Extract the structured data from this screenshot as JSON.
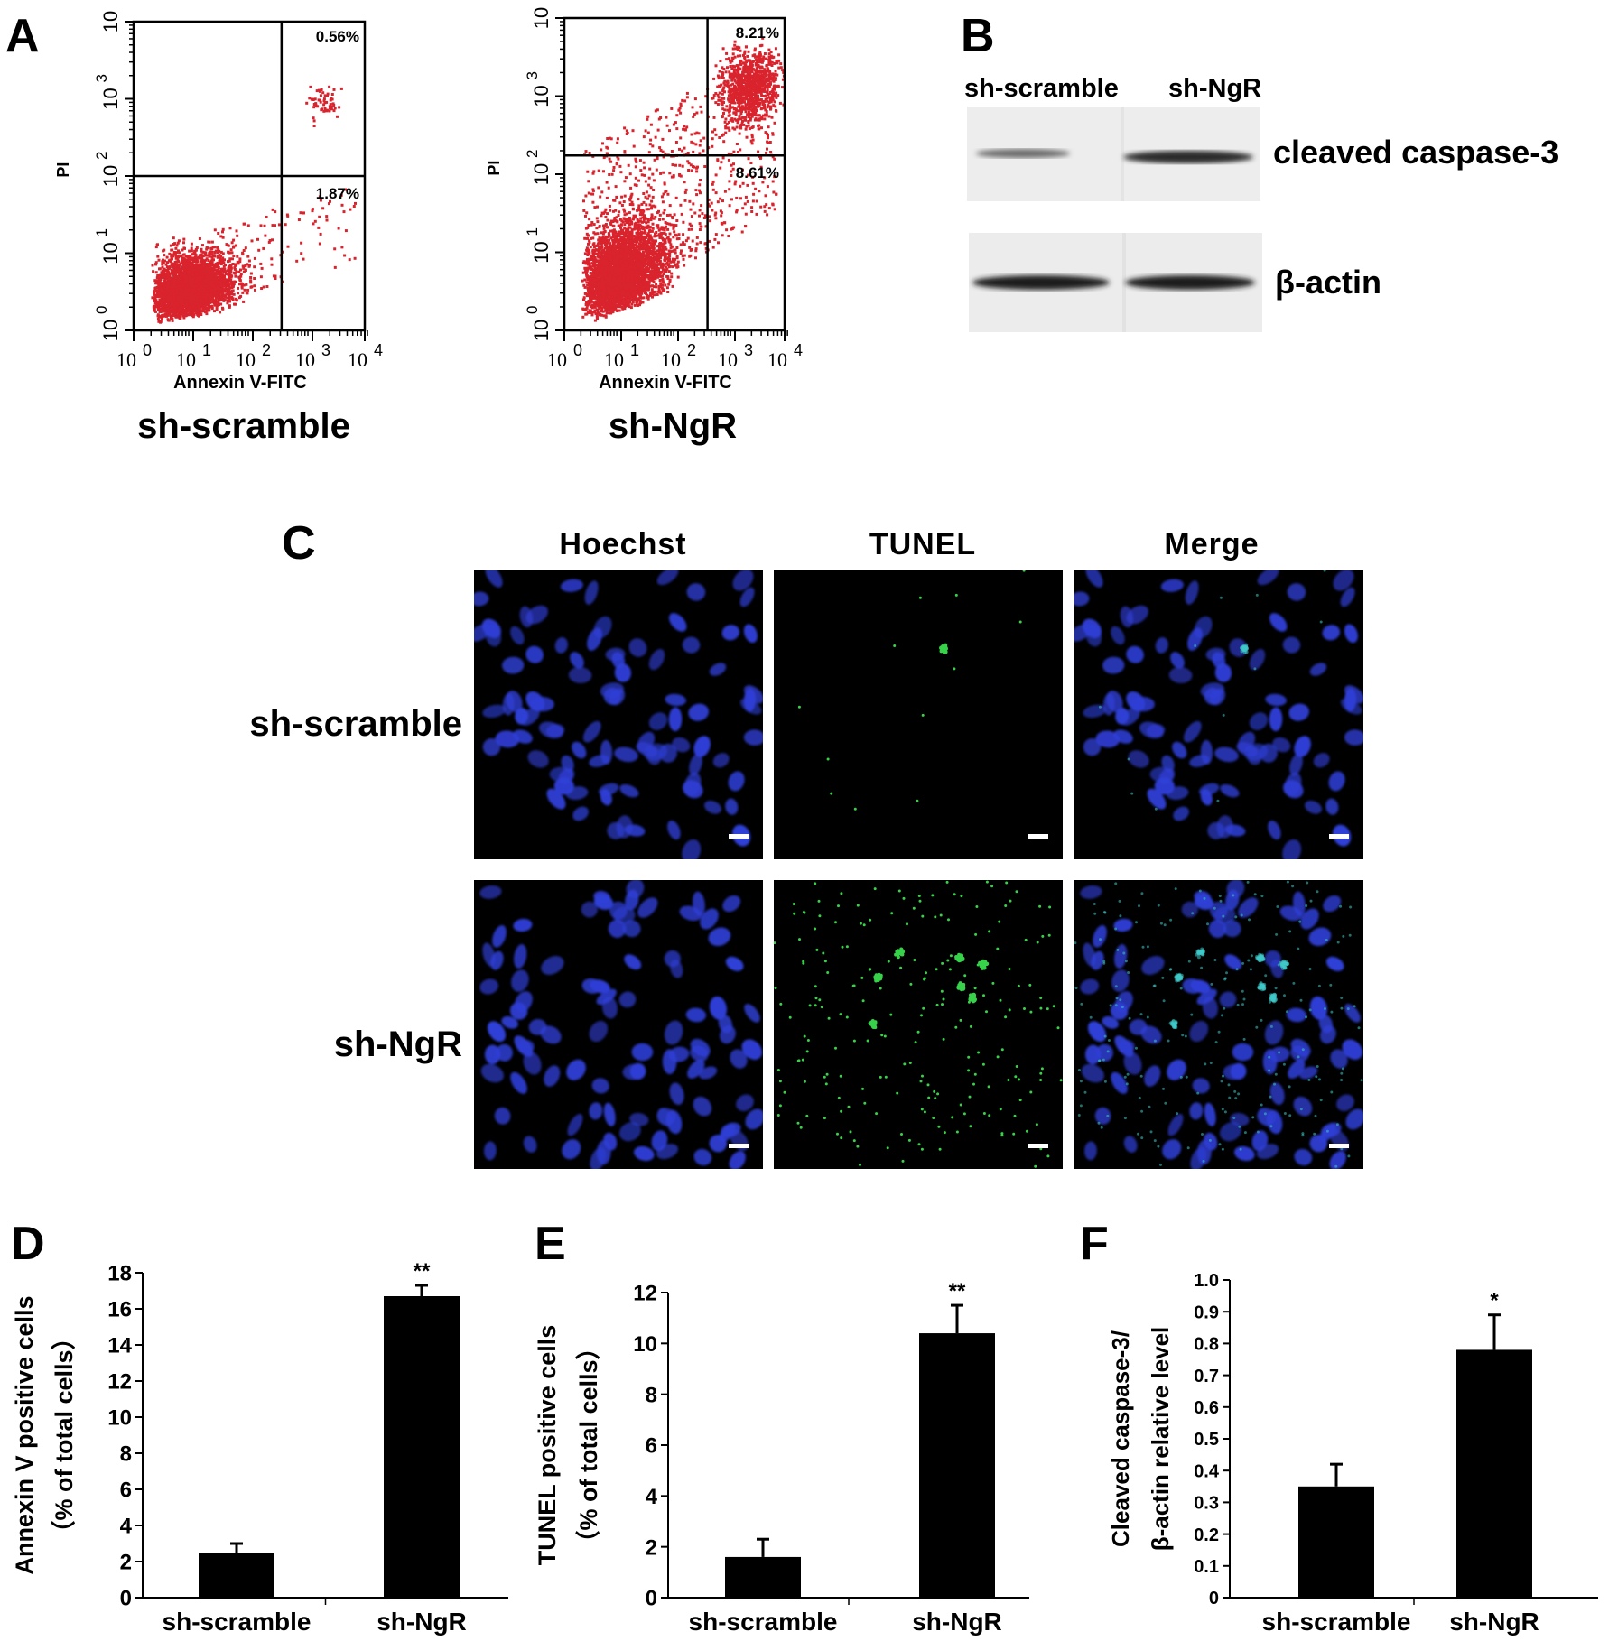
{
  "panels": {
    "A": {
      "letter": "A",
      "flow": [
        {
          "condition": "sh-scramble",
          "xlabel": "Annexin V-FITC",
          "ylabel": "PI",
          "q_upper_right": "0.56%",
          "q_lower_right": "1.87%",
          "ticks_x": [
            "10",
            "10",
            "10",
            "10",
            "10"
          ],
          "ticks_x_exp": [
            "0",
            "1",
            "2",
            "3",
            "4"
          ],
          "ticks_y": [
            "10",
            "10",
            "10",
            "10",
            "10"
          ],
          "ticks_y_exp": [
            "0",
            "1",
            "2",
            "3",
            ""
          ]
        },
        {
          "condition": "sh-NgR",
          "xlabel": "Annexin V-FITC",
          "ylabel": "PI",
          "q_upper_right": "8.21%",
          "q_lower_right": "8.61%",
          "ticks_x": [
            "10",
            "10",
            "10",
            "10",
            "10"
          ],
          "ticks_x_exp": [
            "0",
            "1",
            "2",
            "3",
            "4"
          ],
          "ticks_y": [
            "10",
            "10",
            "10",
            "10",
            "10"
          ],
          "ticks_y_exp": [
            "0",
            "1",
            "2",
            "3",
            ""
          ]
        }
      ],
      "dot_color": "#d9232d"
    },
    "B": {
      "letter": "B",
      "lanes": [
        "sh-scramble",
        "sh-NgR"
      ],
      "bands": [
        "cleaved caspase-3",
        "β-actin"
      ]
    },
    "C": {
      "letter": "C",
      "columns": [
        "Hoechst",
        "TUNEL",
        "Merge"
      ],
      "rows": [
        "sh-scramble",
        "sh-NgR"
      ],
      "nuclei_color": "#2f3fd6",
      "tunel_color": "#37d24a"
    },
    "D": {
      "letter": "D"
    },
    "E": {
      "letter": "E"
    },
    "F": {
      "letter": "F"
    }
  },
  "chart_data": [
    {
      "panel": "D",
      "type": "bar",
      "categories": [
        "sh-scramble",
        "sh-NgR"
      ],
      "values": [
        2.5,
        16.7
      ],
      "errors": [
        0.5,
        0.6
      ],
      "significance": [
        "",
        "**"
      ],
      "ylabel_line1": "Annexin V positive cells",
      "ylabel_line2": "（% of total cells）",
      "ylim": [
        0,
        18
      ],
      "yticks": [
        0,
        2,
        4,
        6,
        8,
        10,
        12,
        14,
        16,
        18
      ],
      "ytick_labels": [
        "0",
        "2",
        "4",
        "6",
        "8",
        "10",
        "12",
        "14",
        "16",
        "18"
      ]
    },
    {
      "panel": "E",
      "type": "bar",
      "categories": [
        "sh-scramble",
        "sh-NgR"
      ],
      "values": [
        1.6,
        10.4
      ],
      "errors": [
        0.7,
        1.1
      ],
      "significance": [
        "",
        "**"
      ],
      "ylabel_line1": "TUNEL positive cells",
      "ylabel_line2": "（% of total cells）",
      "ylim": [
        0,
        12
      ],
      "yticks": [
        0,
        2,
        4,
        6,
        8,
        10,
        12
      ],
      "ytick_labels": [
        "0",
        "2",
        "4",
        "6",
        "8",
        "10",
        "12"
      ]
    },
    {
      "panel": "F",
      "type": "bar",
      "categories": [
        "sh-scramble",
        "sh-NgR"
      ],
      "values": [
        0.35,
        0.78
      ],
      "errors": [
        0.07,
        0.11
      ],
      "significance": [
        "",
        "*"
      ],
      "ylabel_line1": "Cleaved caspase-3/",
      "ylabel_line2": "β-actin relative level",
      "ylim": [
        0,
        1.0
      ],
      "yticks": [
        0,
        0.1,
        0.2,
        0.3,
        0.4,
        0.5,
        0.6,
        0.7,
        0.8,
        0.9,
        1.0
      ],
      "ytick_labels": [
        "0",
        "0.1",
        "0.2",
        "0.3",
        "0.4",
        "0.5",
        "0.6",
        "0.7",
        "0.8",
        "0.9",
        "1.0"
      ]
    }
  ]
}
